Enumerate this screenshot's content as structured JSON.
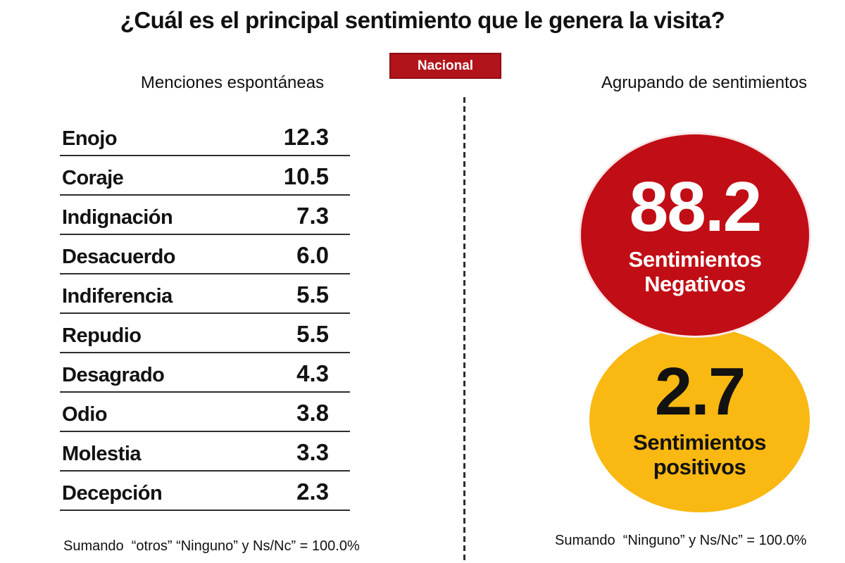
{
  "title": "¿Cuál es el principal sentimiento que le genera la visita?",
  "badge": "Nacional",
  "left": {
    "header": "Menciones espontáneas",
    "rows": [
      {
        "label": "Enojo",
        "value": "12.3"
      },
      {
        "label": "Coraje",
        "value": "10.5"
      },
      {
        "label": "Indignación",
        "value": "7.3"
      },
      {
        "label": "Desacuerdo",
        "value": "6.0"
      },
      {
        "label": "Indiferencia",
        "value": "5.5"
      },
      {
        "label": "Repudio",
        "value": "5.5"
      },
      {
        "label": "Desagrado",
        "value": "4.3"
      },
      {
        "label": "Odio",
        "value": "3.8"
      },
      {
        "label": "Molestia",
        "value": "3.3"
      },
      {
        "label": "Decepción",
        "value": "2.3"
      }
    ],
    "footnote": "Sumando  “otros” “Ninguno” y Ns/Nc” = 100.0%"
  },
  "right": {
    "header": "Agrupando de sentimientos",
    "negative": {
      "value": "88.2",
      "label": "Sentimientos Negativos"
    },
    "positive": {
      "value": "2.7",
      "label": "Sentimientos positivos"
    },
    "footnote": "Sumando  “Ninguno” y Ns/Nc” = 100.0%"
  },
  "colors": {
    "brand-red": "#C10D15",
    "badge-red": "#B2141B",
    "brand-yellow": "#F9B812",
    "ink": "#121212"
  },
  "chart_data": {
    "type": "table",
    "title": "¿Cuál es el principal sentimiento que le genera la visita?",
    "scope": "Nacional",
    "series": [
      {
        "name": "Menciones espontáneas",
        "categories": [
          "Enojo",
          "Coraje",
          "Indignación",
          "Desacuerdo",
          "Indiferencia",
          "Repudio",
          "Desagrado",
          "Odio",
          "Molestia",
          "Decepción"
        ],
        "values": [
          12.3,
          10.5,
          7.3,
          6.0,
          5.5,
          5.5,
          4.3,
          3.8,
          3.3,
          2.3
        ],
        "unit": "%",
        "note": "Sumando  “otros” “Ninguno” y Ns/Nc” = 100.0%"
      },
      {
        "name": "Agrupando de sentimientos",
        "categories": [
          "Sentimientos Negativos",
          "Sentimientos positivos"
        ],
        "values": [
          88.2,
          2.7
        ],
        "unit": "%",
        "colors": [
          "#C10D15",
          "#F9B812"
        ],
        "note": "Sumando  “Ninguno” y Ns/Nc” = 100.0%"
      }
    ]
  }
}
